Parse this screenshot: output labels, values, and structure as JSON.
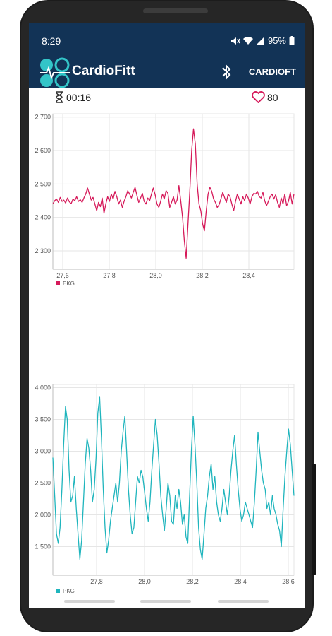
{
  "status_bar": {
    "time": "8:29",
    "battery": "95%"
  },
  "app_bar": {
    "title": "CardioFitt",
    "device_name": "CARDIOFT"
  },
  "info": {
    "elapsed": "00:16",
    "heart_rate": "80"
  },
  "colors": {
    "header": "#123356",
    "ekg": "#d61a5a",
    "pkg": "#1fb5bd"
  },
  "chart_data": [
    {
      "type": "line",
      "series": [
        {
          "name": "EKG",
          "values": [
            2440,
            2450,
            2455,
            2445,
            2460,
            2448,
            2452,
            2443,
            2458,
            2447,
            2441,
            2455,
            2450,
            2462,
            2448,
            2453,
            2445,
            2458,
            2470,
            2488,
            2470,
            2452,
            2460,
            2440,
            2420,
            2445,
            2432,
            2458,
            2412,
            2440,
            2462,
            2448,
            2470,
            2455,
            2478,
            2462,
            2440,
            2452,
            2430,
            2448,
            2462,
            2480,
            2470,
            2458,
            2475,
            2490,
            2466,
            2445,
            2458,
            2472,
            2448,
            2440,
            2458,
            2450,
            2470,
            2488,
            2468,
            2440,
            2430,
            2448,
            2470,
            2455,
            2480,
            2472,
            2430,
            2445,
            2462,
            2440,
            2452,
            2495,
            2450,
            2400,
            2330,
            2278,
            2380,
            2480,
            2600,
            2665,
            2620,
            2500,
            2440,
            2420,
            2380,
            2360,
            2420,
            2470,
            2490,
            2478,
            2455,
            2445,
            2430,
            2438,
            2455,
            2475,
            2460,
            2445,
            2470,
            2462,
            2440,
            2420,
            2448,
            2470,
            2455,
            2440,
            2462,
            2450,
            2470,
            2458,
            2440,
            2462,
            2472,
            2470,
            2478,
            2462,
            2458,
            2475,
            2450,
            2435,
            2448,
            2462,
            2470,
            2455,
            2468,
            2445,
            2430,
            2458,
            2440,
            2470,
            2435,
            2448,
            2475,
            2440,
            2470
          ]
        }
      ],
      "x_ticks": [
        "27,6",
        "27,8",
        "28,0",
        "28,2",
        "28,4"
      ],
      "y_ticks": [
        "2 300",
        "2 400",
        "2 500",
        "2 600",
        "2 700"
      ],
      "ylim": [
        2245,
        2710
      ],
      "legend": "bottom-left",
      "grid": true
    },
    {
      "type": "line",
      "series": [
        {
          "name": "PKG",
          "values": [
            2900,
            2300,
            1700,
            1550,
            1800,
            2400,
            3100,
            3700,
            3500,
            2700,
            2200,
            2300,
            2600,
            2100,
            1700,
            1300,
            1600,
            2200,
            2800,
            3200,
            3050,
            2700,
            2200,
            2400,
            2900,
            3600,
            3850,
            3200,
            2400,
            1800,
            1400,
            1600,
            1900,
            2100,
            2300,
            2500,
            2200,
            2500,
            3000,
            3300,
            3550,
            3000,
            2400,
            2000,
            1700,
            1800,
            2200,
            2600,
            2500,
            2700,
            2600,
            2350,
            2100,
            1900,
            2200,
            2700,
            3100,
            3500,
            3250,
            2800,
            2300,
            2000,
            1750,
            2100,
            2500,
            2300,
            1900,
            1850,
            2300,
            2100,
            2400,
            2200,
            1850,
            2000,
            1650,
            1550,
            2300,
            3000,
            3550,
            3100,
            2500,
            1800,
            1450,
            1300,
            1700,
            2100,
            2300,
            2600,
            2800,
            2400,
            2600,
            2200,
            2000,
            1900,
            2100,
            2400,
            2200,
            2000,
            2300,
            2700,
            3000,
            3250,
            2800,
            2400,
            2100,
            1900,
            2000,
            2200,
            2100,
            2000,
            1900,
            1800,
            2200,
            2700,
            3300,
            3000,
            2700,
            2500,
            2400,
            2100,
            2200,
            2000,
            2300,
            2100,
            2000,
            1850,
            1750,
            1500,
            2100,
            2600,
            3000,
            3350,
            3100,
            2700,
            2300
          ]
        }
      ],
      "x_ticks": [
        "27,8",
        "28,0",
        "28,2",
        "28,4",
        "28,6"
      ],
      "y_ticks": [
        "1 500",
        "2 000",
        "2 500",
        "3 000",
        "3 500",
        "4 000"
      ],
      "ylim": [
        1050,
        4050
      ],
      "legend": "bottom-left",
      "grid": true
    }
  ]
}
